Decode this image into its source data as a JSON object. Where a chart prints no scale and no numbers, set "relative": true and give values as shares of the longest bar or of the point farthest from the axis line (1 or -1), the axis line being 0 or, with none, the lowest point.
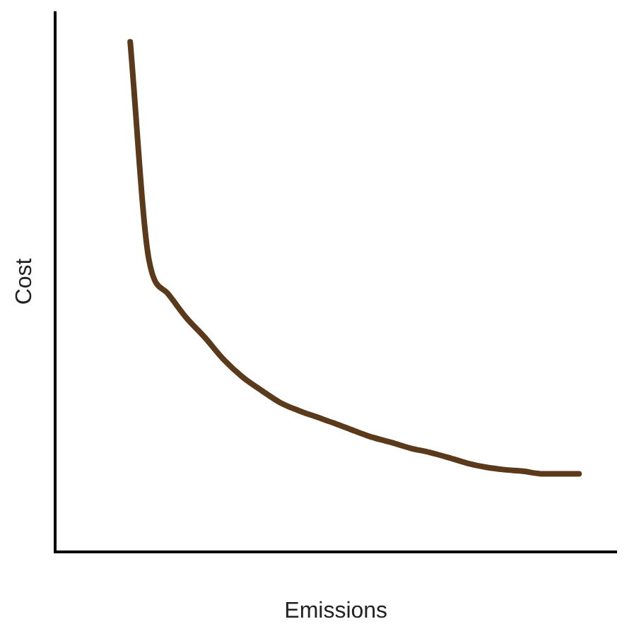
{
  "chart_data": {
    "type": "line",
    "xlabel": "Emissions",
    "ylabel": "Cost",
    "relative": true,
    "categories": [
      null,
      null,
      null,
      null,
      null,
      null,
      null,
      null,
      null,
      null,
      null,
      null,
      null,
      null,
      null,
      null,
      null,
      null,
      null,
      null,
      null,
      null,
      null,
      null,
      null,
      null,
      null,
      null,
      null,
      null,
      null
    ],
    "series": [
      {
        "color": "#5a3a1a",
        "values": [
          null,
          null,
          null,
          null,
          1.0,
          0.573,
          0.507,
          0.459,
          0.42,
          0.377,
          0.343,
          0.317,
          0.293,
          0.277,
          0.264,
          0.251,
          0.237,
          0.224,
          0.214,
          0.203,
          0.195,
          0.185,
          0.174,
          0.166,
          0.161,
          0.158,
          0.153,
          0.153,
          0.153,
          null,
          null
        ]
      }
    ],
    "grid": false,
    "legend": false,
    "marker": "none",
    "line_style": "solid"
  }
}
